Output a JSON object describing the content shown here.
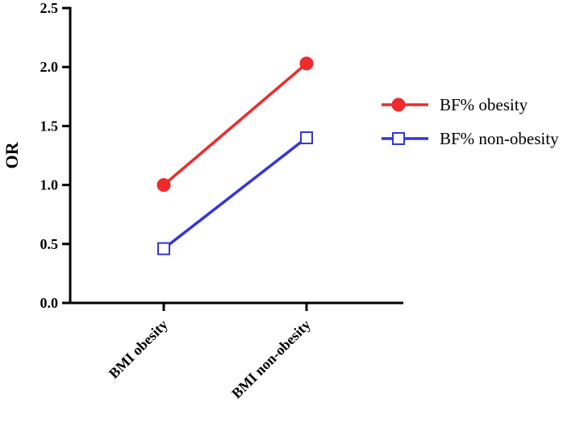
{
  "chart_data": {
    "type": "line",
    "categories": [
      "BMI obesity",
      "BMI non-obesity"
    ],
    "series": [
      {
        "name": "BF% obesity",
        "values": [
          1.0,
          2.03
        ],
        "color": "#ee2b2b",
        "marker": "filled-circle"
      },
      {
        "name": "BF% non-obesity",
        "values": [
          0.46,
          1.4
        ],
        "color": "#3535d8",
        "marker": "open-square"
      }
    ],
    "ylabel": "OR",
    "xlabel": "",
    "ylim": [
      0,
      2.5
    ],
    "yticks": [
      "0.0",
      "0.5",
      "1.0",
      "1.5",
      "2.0",
      "2.5"
    ],
    "grid": false,
    "legend_position": "right"
  }
}
